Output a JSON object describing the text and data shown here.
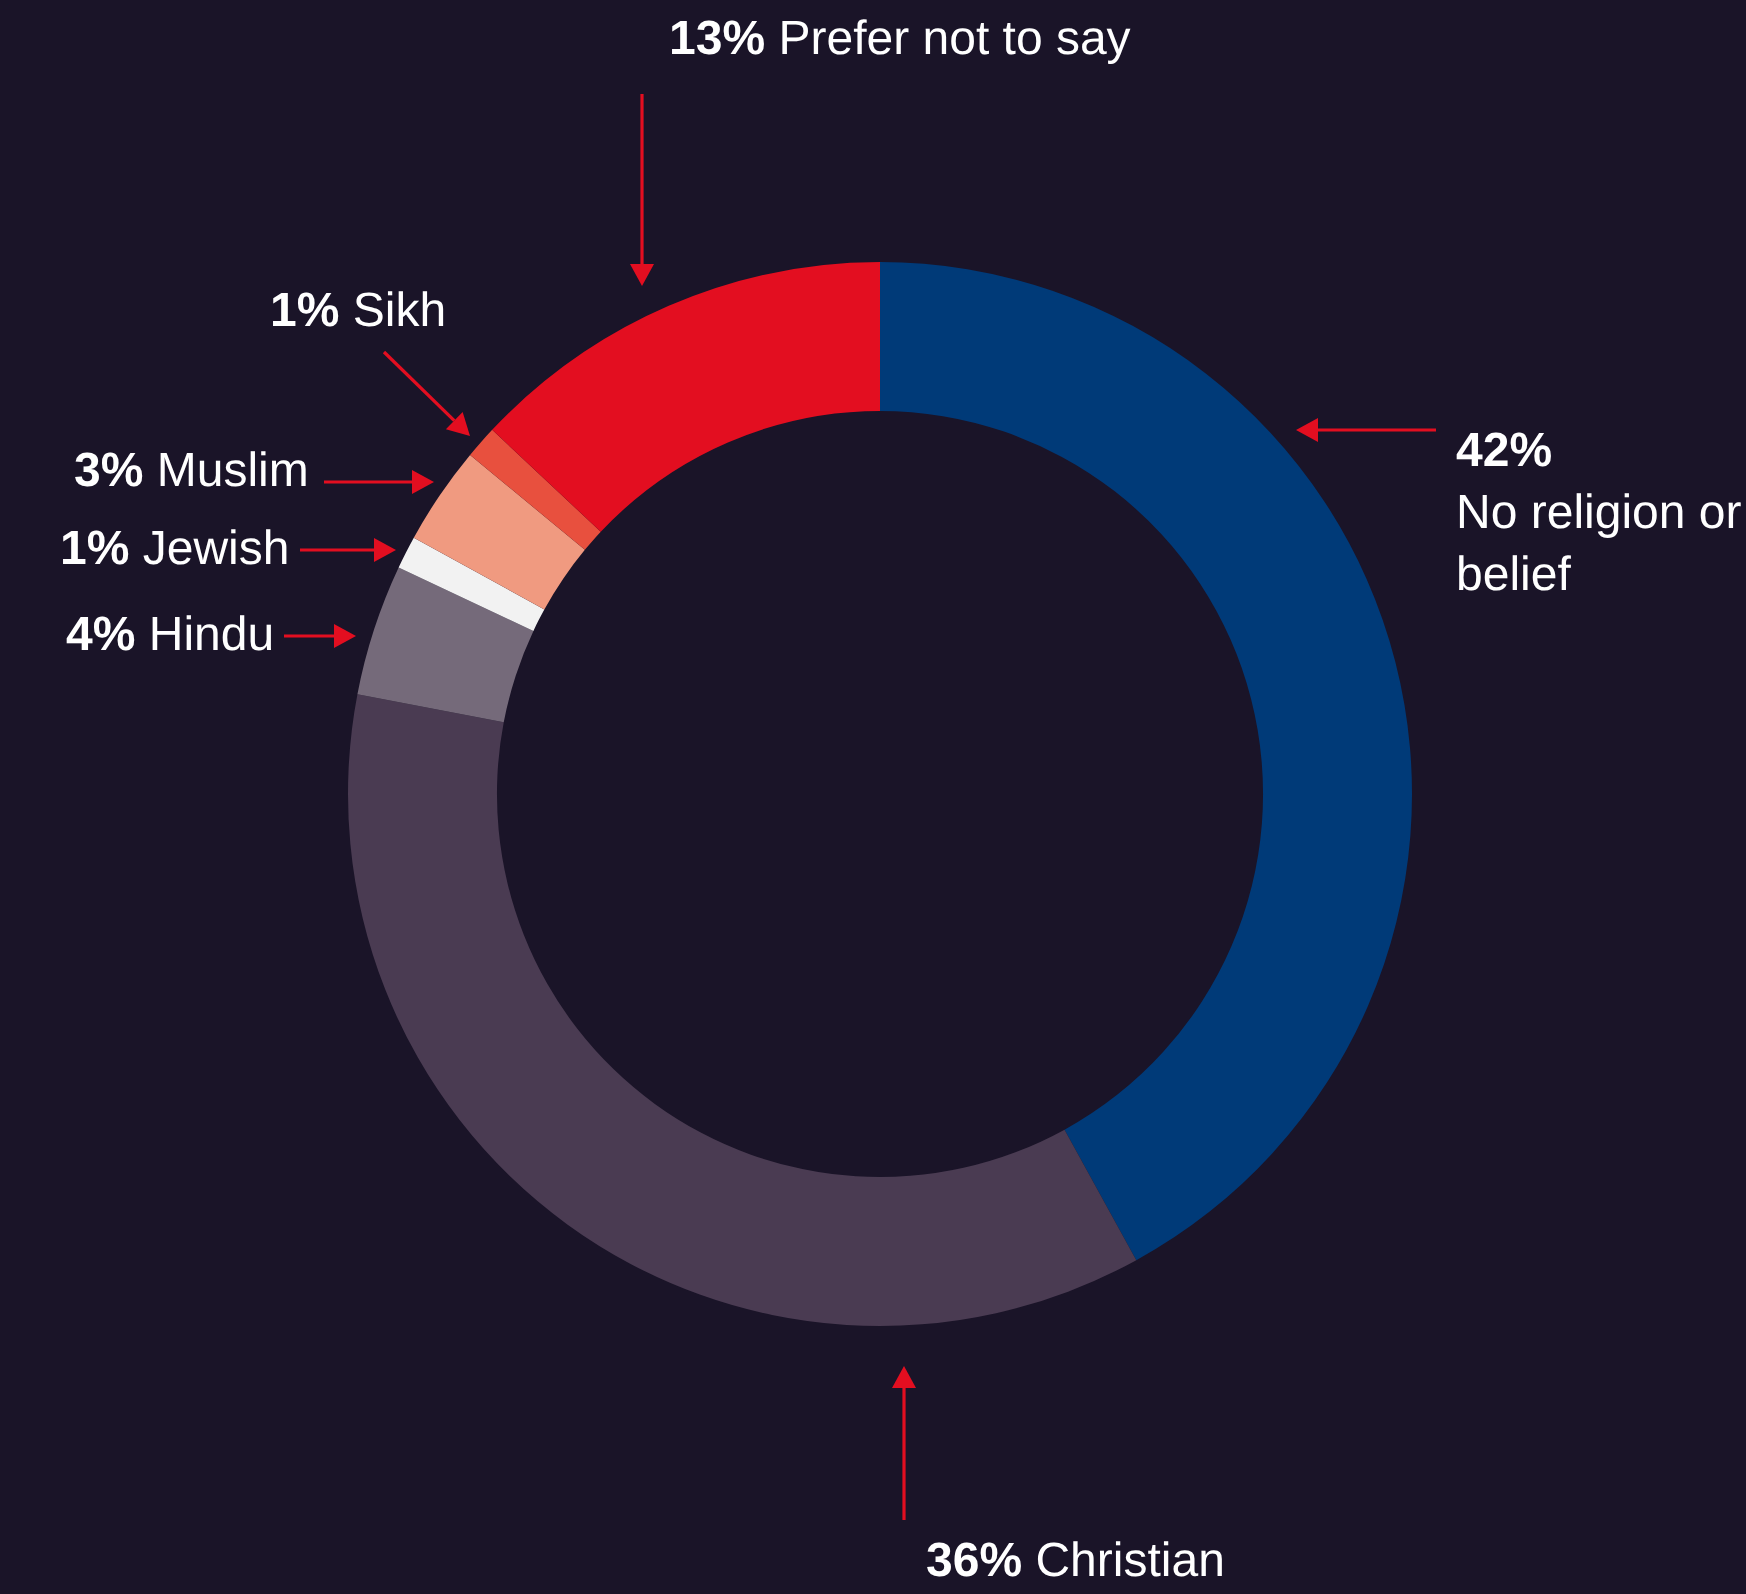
{
  "chart_data": {
    "type": "donut",
    "categories": [
      "No religion or belief",
      "Christian",
      "Hindu",
      "Jewish",
      "Muslim",
      "Sikh",
      "Prefer not to say"
    ],
    "values": [
      42,
      36,
      4,
      1,
      3,
      1,
      13
    ],
    "value_labels": [
      "42%",
      "36%",
      "4%",
      "1%",
      "3%",
      "1%",
      "13%"
    ],
    "colors": [
      "#003a78",
      "#4a3b52",
      "#756a7a",
      "#f2f2f2",
      "#f09a80",
      "#e8503e",
      "#e30e20"
    ],
    "legend": false
  }
}
